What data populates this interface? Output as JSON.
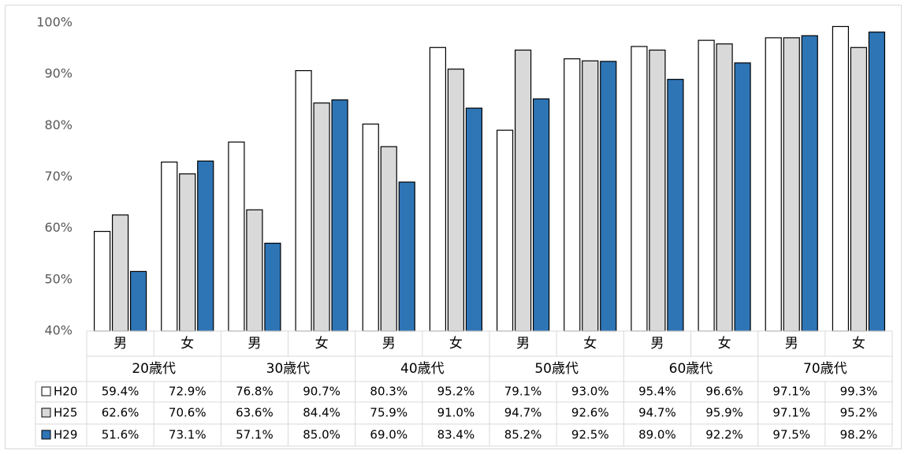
{
  "chart_data": {
    "type": "bar",
    "groups": [
      "20歳代",
      "30歳代",
      "40歳代",
      "50歳代",
      "60歳代",
      "70歳代"
    ],
    "subcategories": [
      "男",
      "女",
      "男",
      "女",
      "男",
      "女",
      "男",
      "女",
      "男",
      "女",
      "男",
      "女"
    ],
    "series": [
      {
        "name": "H20",
        "color": "#ffffff",
        "values": [
          59.4,
          72.9,
          76.8,
          90.7,
          80.3,
          95.2,
          79.1,
          93.0,
          95.4,
          96.6,
          97.1,
          99.3
        ],
        "labels": [
          "59.4%",
          "72.9%",
          "76.8%",
          "90.7%",
          "80.3%",
          "95.2%",
          "79.1%",
          "93.0%",
          "95.4%",
          "96.6%",
          "97.1%",
          "99.3%"
        ]
      },
      {
        "name": "H25",
        "color": "#d9d9d9",
        "values": [
          62.6,
          70.6,
          63.6,
          84.4,
          75.9,
          91.0,
          94.7,
          92.6,
          94.7,
          95.9,
          97.1,
          95.2
        ],
        "labels": [
          "62.6%",
          "70.6%",
          "63.6%",
          "84.4%",
          "75.9%",
          "91.0%",
          "94.7%",
          "92.6%",
          "94.7%",
          "95.9%",
          "97.1%",
          "95.2%"
        ]
      },
      {
        "name": "H29",
        "color": "#2e75b6",
        "values": [
          51.6,
          73.1,
          57.1,
          85.0,
          69.0,
          83.4,
          85.2,
          92.5,
          89.0,
          92.2,
          97.5,
          98.2
        ],
        "labels": [
          "51.6%",
          "73.1%",
          "57.1%",
          "85.0%",
          "69.0%",
          "83.4%",
          "85.2%",
          "92.5%",
          "89.0%",
          "92.2%",
          "97.5%",
          "98.2%"
        ]
      }
    ],
    "yticks": [
      "40%",
      "50%",
      "60%",
      "70%",
      "80%",
      "90%",
      "100%"
    ],
    "ylim": [
      40,
      100
    ],
    "grid": false,
    "legend": "data-table"
  }
}
